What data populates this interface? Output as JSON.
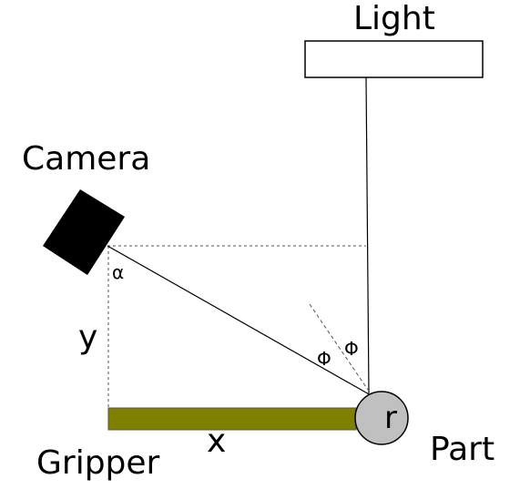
{
  "labels": {
    "light": "Light",
    "camera": "Camera",
    "gripper": "Gripper",
    "part": "Part",
    "x": "x",
    "y": "y",
    "alpha": "α",
    "phi_left": "Φ",
    "phi_right": "Φ",
    "radius": "r"
  },
  "colors": {
    "camera_body": "#000000",
    "gripper_bar": "#808000",
    "part_fill": "#c0c0c0",
    "line": "#000000",
    "dashed_line": "#555555"
  },
  "icons": {
    "camera": "camera-icon",
    "light": "light-source-icon"
  }
}
